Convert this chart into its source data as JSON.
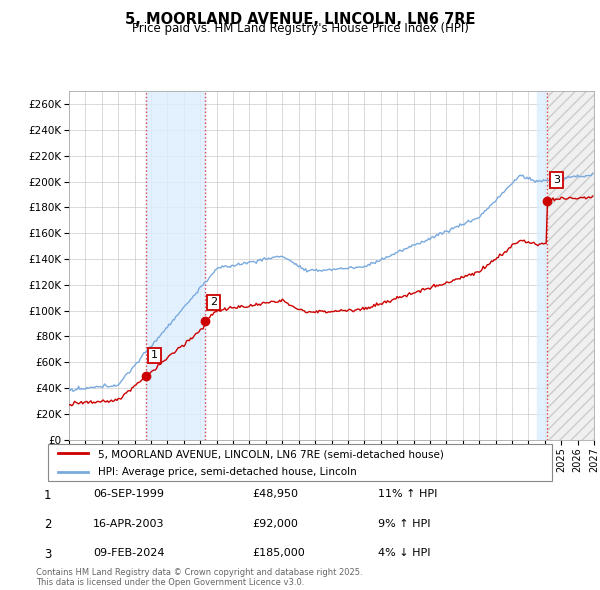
{
  "title": "5, MOORLAND AVENUE, LINCOLN, LN6 7RE",
  "subtitle": "Price paid vs. HM Land Registry's House Price Index (HPI)",
  "ylim": [
    0,
    270000
  ],
  "yticks": [
    0,
    20000,
    40000,
    60000,
    80000,
    100000,
    120000,
    140000,
    160000,
    180000,
    200000,
    220000,
    240000,
    260000
  ],
  "sale_color": "#cc0000",
  "hpi_color": "#7aaadd",
  "background_color": "#ffffff",
  "grid_color": "#cccccc",
  "sale_points": [
    {
      "year": 1999.69,
      "price": 48950,
      "label": "1"
    },
    {
      "year": 2003.29,
      "price": 92000,
      "label": "2"
    },
    {
      "year": 2024.11,
      "price": 185000,
      "label": "3"
    }
  ],
  "vline_color": "#dd4444",
  "legend_entries": [
    "5, MOORLAND AVENUE, LINCOLN, LN6 7RE (semi-detached house)",
    "HPI: Average price, semi-detached house, Lincoln"
  ],
  "table_rows": [
    {
      "num": "1",
      "date": "06-SEP-1999",
      "price": "£48,950",
      "hpi": "11% ↑ HPI"
    },
    {
      "num": "2",
      "date": "16-APR-2003",
      "price": "£92,000",
      "hpi": "9% ↑ HPI"
    },
    {
      "num": "3",
      "date": "09-FEB-2024",
      "price": "£185,000",
      "hpi": "4% ↓ HPI"
    }
  ],
  "footer": "Contains HM Land Registry data © Crown copyright and database right 2025.\nThis data is licensed under the Open Government Licence v3.0.",
  "xmin": 1995,
  "xmax": 2027
}
